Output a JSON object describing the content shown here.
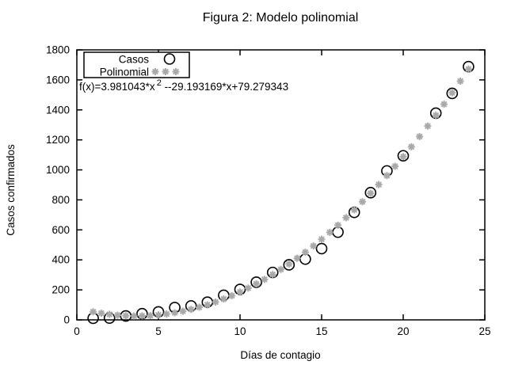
{
  "title": "Figura 2: Modelo polinomial",
  "equation": {
    "prefix": "f(x)=3.981043*x",
    "exponent": "2",
    "suffix": " --29.193169*x+79.279343"
  },
  "legend": {
    "casos_label": "Casos",
    "polinomial_label": "Polinomial"
  },
  "axes": {
    "x_label": "Días de contagio",
    "y_label": "Casos confirmados",
    "x_ticks": [
      0,
      5,
      10,
      15,
      20,
      25
    ],
    "y_ticks": [
      0,
      200,
      400,
      600,
      800,
      1000,
      1200,
      1400,
      1600,
      1800
    ]
  },
  "colors": {
    "casos": "#000000",
    "polinomial": "#a9a9a9",
    "background": "#ffffff"
  },
  "chart_data": {
    "type": "scatter",
    "title": "Figura 2: Modelo polinomial",
    "xlabel": "Días de contagio",
    "ylabel": "Casos confirmados",
    "xlim": [
      0,
      25
    ],
    "ylim": [
      0,
      1800
    ],
    "grid": false,
    "legend_position": "top-left",
    "series": [
      {
        "name": "Casos",
        "marker": "open-circle",
        "color": "#000000",
        "x": [
          1,
          2,
          3,
          4,
          5,
          6,
          7,
          8,
          9,
          10,
          11,
          12,
          13,
          14,
          15,
          16,
          17,
          18,
          19,
          20,
          22,
          23,
          24
        ],
        "y": [
          11,
          12,
          26,
          41,
          53,
          82,
          93,
          118,
          164,
          203,
          251,
          316,
          367,
          405,
          475,
          585,
          717,
          848,
          993,
          1094,
          1378,
          1510,
          1688
        ]
      },
      {
        "name": "Polinomial",
        "marker": "asterisk",
        "color": "#a9a9a9",
        "model": "quadratic",
        "coefficients": {
          "a": 3.981043,
          "b": -29.193169,
          "c": 79.279343
        },
        "x_start": 1,
        "x_end": 24,
        "x_step": 0.5
      }
    ]
  }
}
